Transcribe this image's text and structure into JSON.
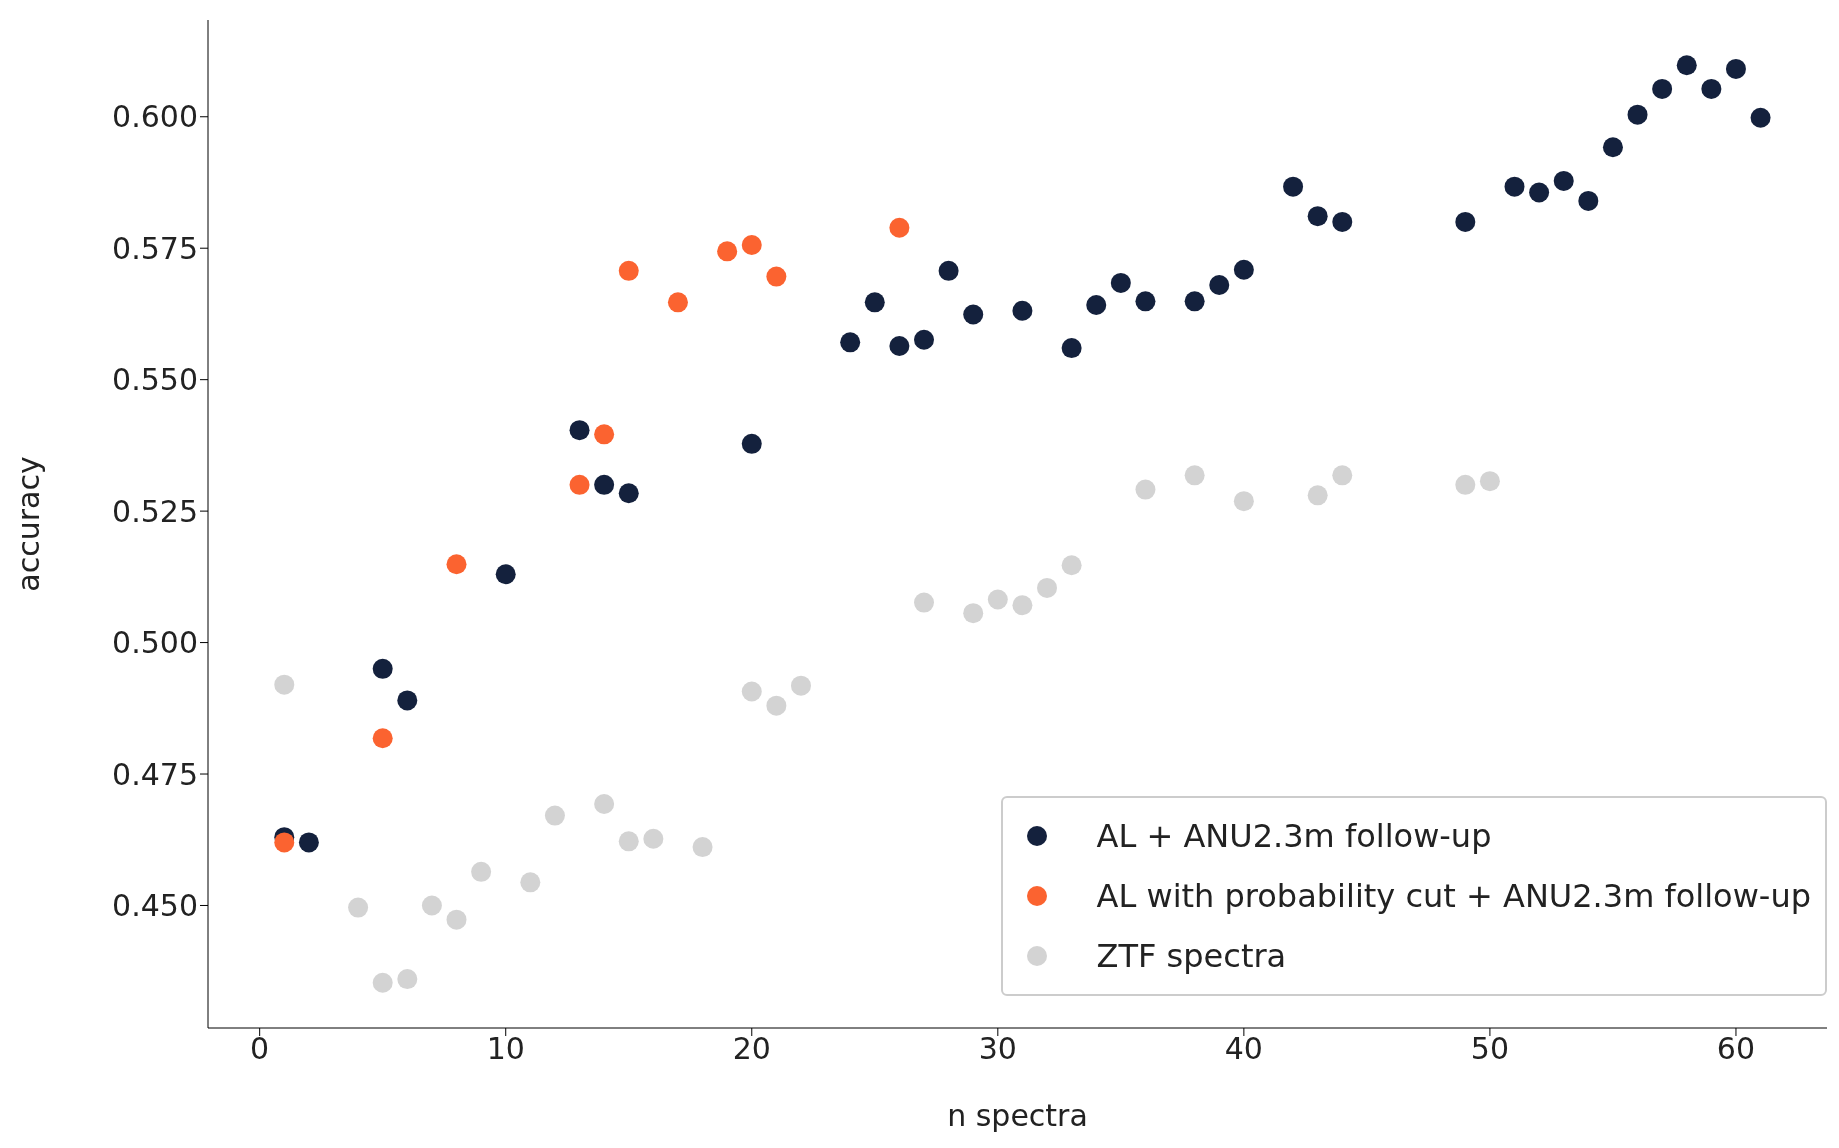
{
  "chart_data": {
    "type": "scatter",
    "xlabel": "n spectra",
    "ylabel": "accuracy",
    "xlim": [
      -2.1,
      63.7
    ],
    "xticks": [
      0,
      10,
      20,
      30,
      40,
      50,
      60
    ],
    "ylim": [
      0.4267,
      0.6184
    ],
    "yticks": [
      {
        "value": 0.45,
        "label": "0.450"
      },
      {
        "value": 0.475,
        "label": "0.475"
      },
      {
        "value": 0.5,
        "label": "0.500"
      },
      {
        "value": 0.525,
        "label": "0.525"
      },
      {
        "value": 0.55,
        "label": "0.550"
      },
      {
        "value": 0.575,
        "label": "0.575"
      },
      {
        "value": 0.6,
        "label": "0.600"
      }
    ],
    "grid": false,
    "legend": "bottom right",
    "marker": "circle",
    "series": [
      {
        "name": "ZTF spectra",
        "color": "#d3d3d3",
        "x": [
          1,
          4,
          5,
          6,
          7,
          8,
          9,
          11,
          12,
          14,
          15,
          16,
          18,
          20,
          21,
          22,
          27,
          29,
          30,
          31,
          32,
          33,
          36,
          38,
          40,
          43,
          44,
          49,
          50
        ],
        "values": [
          0.492,
          0.4496,
          0.4353,
          0.436,
          0.45,
          0.4473,
          0.4564,
          0.4544,
          0.4671,
          0.4693,
          0.4622,
          0.4627,
          0.4611,
          0.4907,
          0.488,
          0.4918,
          0.5076,
          0.5056,
          0.5082,
          0.5071,
          0.5104,
          0.5147,
          0.5291,
          0.5318,
          0.5269,
          0.528,
          0.5318,
          0.53,
          0.5307
        ]
      },
      {
        "name": "AL + ANU2.3m follow-up",
        "color": "#14213d",
        "x": [
          1,
          2,
          5,
          6,
          10,
          13,
          14,
          15,
          20,
          24,
          25,
          26,
          27,
          28,
          29,
          31,
          33,
          34,
          35,
          36,
          38,
          39,
          40,
          42,
          43,
          44,
          49,
          51,
          52,
          53,
          54,
          55,
          56,
          57,
          58,
          59,
          60,
          61
        ],
        "values": [
          0.463,
          0.462,
          0.495,
          0.489,
          0.513,
          0.5404,
          0.53,
          0.5284,
          0.5378,
          0.5571,
          0.5647,
          0.5564,
          0.5576,
          0.5707,
          0.5624,
          0.5631,
          0.556,
          0.5642,
          0.5684,
          0.5649,
          0.5649,
          0.568,
          0.5709,
          0.5867,
          0.5811,
          0.58,
          0.58,
          0.5867,
          0.5856,
          0.5878,
          0.584,
          0.5942,
          0.6004,
          0.6053,
          0.6098,
          0.6053,
          0.6091,
          0.5998
        ]
      },
      {
        "name": "AL with probability cut + ANU2.3m follow-up",
        "color": "#fb6330",
        "x": [
          1,
          5,
          8,
          13,
          14,
          15,
          17,
          19,
          20,
          21,
          26
        ],
        "values": [
          0.462,
          0.4818,
          0.5149,
          0.53,
          0.5396,
          0.5707,
          0.5647,
          0.5744,
          0.5756,
          0.5696,
          0.5789
        ]
      }
    ]
  }
}
